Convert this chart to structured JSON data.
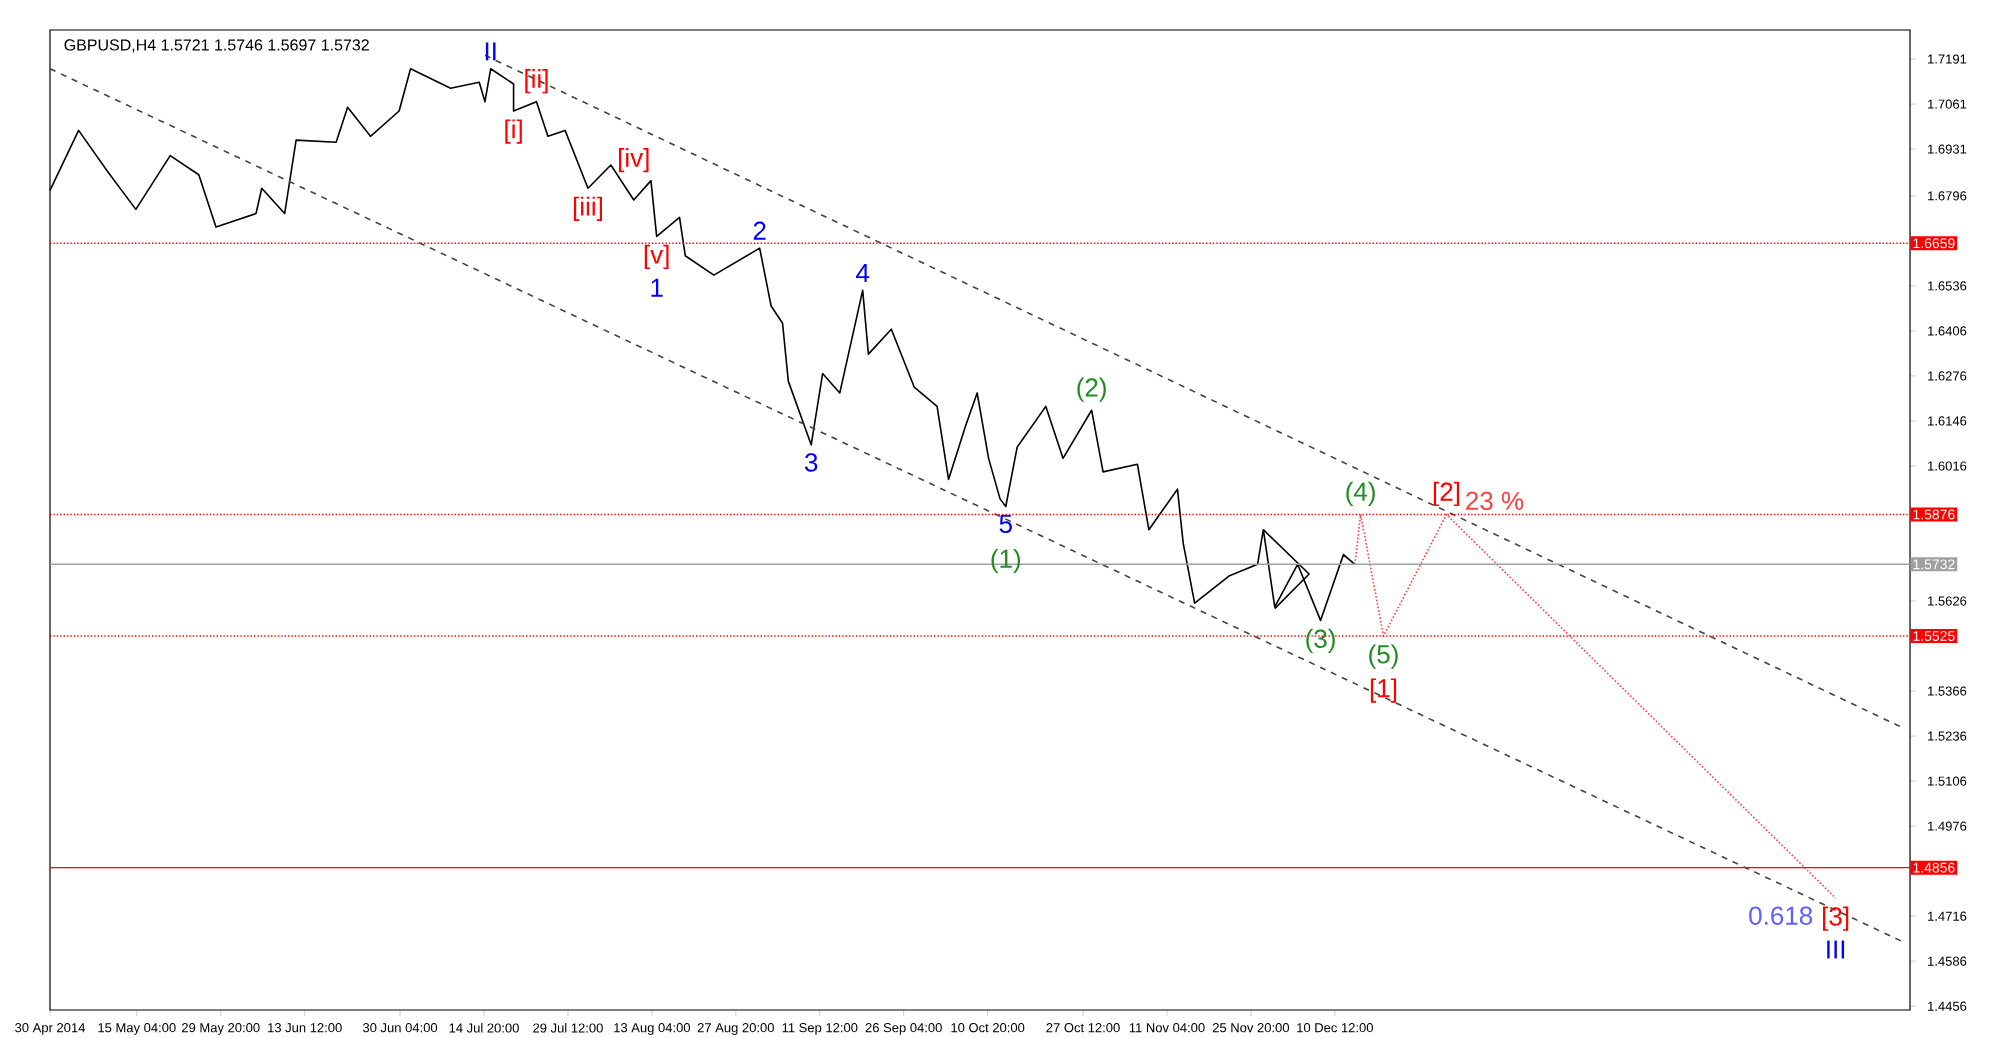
{
  "chart_data": {
    "type": "line",
    "title": "GBPUSD,H4  1.5721 1.5746 1.5697 1.5732",
    "xlim": [
      "2014-04-30",
      "2015-03-21"
    ],
    "ylim": [
      1.4445,
      1.7275
    ],
    "xticks": [
      {
        "value": "2014-04-30T00:00",
        "label": "30 Apr 2014"
      },
      {
        "value": "2014-05-15T04:00",
        "label": "15 May 04:00"
      },
      {
        "value": "2014-05-29T20:00",
        "label": "29 May 20:00"
      },
      {
        "value": "2014-06-13T12:00",
        "label": "13 Jun 12:00"
      },
      {
        "value": "2014-06-30T04:00",
        "label": "30 Jun 04:00"
      },
      {
        "value": "2014-07-14T20:00",
        "label": "14 Jul 20:00"
      },
      {
        "value": "2014-07-29T12:00",
        "label": "29 Jul 12:00"
      },
      {
        "value": "2014-08-13T04:00",
        "label": "13 Aug 04:00"
      },
      {
        "value": "2014-08-27T20:00",
        "label": "27 Aug 20:00"
      },
      {
        "value": "2014-09-11T12:00",
        "label": "11 Sep 12:00"
      },
      {
        "value": "2014-09-26T04:00",
        "label": "26 Sep 04:00"
      },
      {
        "value": "2014-10-10T20:00",
        "label": "10 Oct 20:00"
      },
      {
        "value": "2014-10-27T12:00",
        "label": "27 Oct 12:00"
      },
      {
        "value": "2014-11-11T04:00",
        "label": "11 Nov 04:00"
      },
      {
        "value": "2014-11-25T20:00",
        "label": "25 Nov 20:00"
      },
      {
        "value": "2014-12-10T12:00",
        "label": "10 Dec 12:00"
      }
    ],
    "yticks": [
      1.7191,
      1.7061,
      1.6931,
      1.6796,
      1.6536,
      1.6406,
      1.6276,
      1.6146,
      1.6016,
      1.5626,
      1.5366,
      1.5236,
      1.5106,
      1.4976,
      1.4716,
      1.4586,
      1.4456
    ],
    "grid": false,
    "marker": "none",
    "series": [
      {
        "color": "#000000",
        "line_style": "solid",
        "x": [
          "2014-04-30",
          "2014-05-05",
          "2014-05-10",
          "2014-05-15",
          "2014-05-21",
          "2014-05-26",
          "2014-05-29",
          "2014-06-05",
          "2014-06-06",
          "2014-06-10",
          "2014-06-12",
          "2014-06-19",
          "2014-06-21",
          "2014-06-25",
          "2014-06-30",
          "2014-07-02",
          "2014-07-09",
          "2014-07-14",
          "2014-07-15",
          "2014-07-16",
          "2014-07-20",
          "2014-07-20",
          "2014-07-24",
          "2014-07-26",
          "2014-07-29",
          "2014-08-02",
          "2014-08-06",
          "2014-08-10",
          "2014-08-13",
          "2014-08-14",
          "2014-08-18",
          "2014-08-19",
          "2014-08-24",
          "2014-09-01",
          "2014-09-03",
          "2014-09-05",
          "2014-09-06",
          "2014-09-10",
          "2014-09-12",
          "2014-09-15",
          "2014-09-19",
          "2014-09-20",
          "2014-09-24",
          "2014-09-28",
          "2014-10-02",
          "2014-10-04",
          "2014-10-07",
          "2014-10-09",
          "2014-10-11",
          "2014-10-13",
          "2014-10-14",
          "2014-10-16",
          "2014-10-21",
          "2014-10-24",
          "2014-10-29",
          "2014-10-31",
          "2014-11-06",
          "2014-11-08",
          "2014-11-13",
          "2014-11-14",
          "2014-11-16",
          "2014-11-22",
          "2014-11-27",
          "2014-11-28",
          "2014-11-30",
          "2014-12-04",
          "2014-12-08",
          "2014-12-12",
          "2014-12-14"
        ],
        "values": [
          1.6812,
          1.6985,
          1.6868,
          1.6757,
          1.6912,
          1.6857,
          1.6706,
          1.6745,
          1.6818,
          1.6745,
          1.6957,
          1.6951,
          1.7052,
          1.6968,
          1.7041,
          1.7163,
          1.7107,
          1.7124,
          1.7068,
          1.7163,
          1.7119,
          1.7041,
          1.7068,
          1.6968,
          1.6985,
          1.6818,
          1.6885,
          1.6784,
          1.684,
          1.6679,
          1.6734,
          1.6623,
          1.6567,
          1.6645,
          1.6478,
          1.6428,
          1.6261,
          1.6077,
          1.6283,
          1.6227,
          1.6523,
          1.6339,
          1.6411,
          1.6244,
          1.6188,
          1.5977,
          1.6133,
          1.6227,
          1.6038,
          1.5921,
          1.5899,
          1.6071,
          1.6188,
          1.6038,
          1.6177,
          1.5999,
          1.6021,
          1.5832,
          1.5949,
          1.5793,
          1.562,
          1.5698,
          1.5732,
          1.5832,
          1.5609,
          1.5732,
          1.557,
          1.576,
          1.5732
        ]
      },
      {
        "color": "#444444",
        "line_style": "dashed",
        "x": [
          "2014-07-15",
          "2015-03-20"
        ],
        "values": [
          1.7202,
          1.5258
        ]
      },
      {
        "color": "#444444",
        "line_style": "dashed",
        "x": [
          "2014-04-30",
          "2015-03-20"
        ],
        "values": [
          1.7163,
          1.464
        ]
      },
      {
        "color": "#000000",
        "line_style": "solid",
        "x": [
          "2014-11-28",
          "2014-12-06",
          "2014-11-30"
        ],
        "values": [
          1.5832,
          1.5704,
          1.5604
        ]
      },
      {
        "color": "#ff4040",
        "line_style": "dotted",
        "x": [
          "2014-12-14",
          "2014-12-15",
          "2014-12-19",
          "2014-12-30",
          "2015-03-08"
        ],
        "values": [
          1.5732,
          1.5876,
          1.5525,
          1.5876,
          1.4768
        ]
      }
    ],
    "ref_lines": [
      {
        "axis": "y",
        "value": 1.6659,
        "label": "1.6659",
        "color": "#ff0000",
        "line_style": "dotted"
      },
      {
        "axis": "y",
        "value": 1.5876,
        "label": "1.5876",
        "color": "#ff0000",
        "line_style": "dotted"
      },
      {
        "axis": "y",
        "value": 1.5732,
        "label": "1.5732",
        "color": "#a0a0a0",
        "line_style": "solid"
      },
      {
        "axis": "y",
        "value": 1.5525,
        "label": "1.5525",
        "color": "#ff0000",
        "line_style": "dotted"
      },
      {
        "axis": "y",
        "value": 1.4856,
        "label": "1.4856",
        "color": "#ff0000",
        "line_style": "solid"
      }
    ],
    "annotations": [
      {
        "text": "II",
        "x": "2014-07-16",
        "y": 1.7163
      },
      {
        "text": "[ii]",
        "x": "2014-07-24",
        "y": 1.7068
      },
      {
        "text": "[i]",
        "x": "2014-07-20",
        "y": 1.7041
      },
      {
        "text": "[iv]",
        "x": "2014-08-10",
        "y": 1.684
      },
      {
        "text": "[iii]",
        "x": "2014-08-02",
        "y": 1.6818
      },
      {
        "text": "[v]",
        "x": "2014-08-14",
        "y": 1.6679
      },
      {
        "text": "1",
        "x": "2014-08-14",
        "y": 1.6679
      },
      {
        "text": "2",
        "x": "2014-09-01",
        "y": 1.6645
      },
      {
        "text": "3",
        "x": "2014-09-10",
        "y": 1.6077
      },
      {
        "text": "4",
        "x": "2014-09-19",
        "y": 1.6523
      },
      {
        "text": "5",
        "x": "2014-10-14",
        "y": 1.5899
      },
      {
        "text": "(1)",
        "x": "2014-10-14",
        "y": 1.5899
      },
      {
        "text": "(2)",
        "x": "2014-10-29",
        "y": 1.6177
      },
      {
        "text": "(3)",
        "x": "2014-12-08",
        "y": 1.557
      },
      {
        "text": "(4)",
        "x": "2014-12-15",
        "y": 1.5876
      },
      {
        "text": "(5)",
        "x": "2014-12-19",
        "y": 1.5525
      },
      {
        "text": "[1]",
        "x": "2014-12-19",
        "y": 1.5525
      },
      {
        "text": "[2]",
        "x": "2014-12-30",
        "y": 1.5876
      },
      {
        "text": "23 %",
        "x": "2014-12-30",
        "y": 1.5876
      },
      {
        "text": "[3]",
        "x": "2015-03-08",
        "y": 1.4768
      },
      {
        "text": "III",
        "x": "2015-03-08",
        "y": 1.4768
      },
      {
        "text": "0.618",
        "x": "2015-03-08",
        "y": 1.4768
      }
    ]
  }
}
